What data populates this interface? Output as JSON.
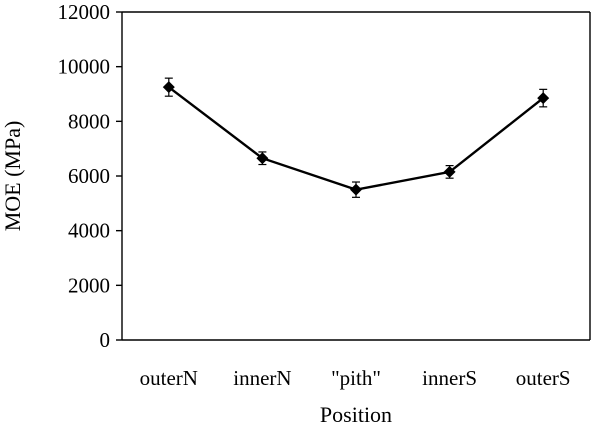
{
  "chart_data": {
    "type": "line",
    "title": "",
    "xlabel": "Position",
    "ylabel": "MOE (MPa)",
    "categories": [
      "outerN",
      "innerN",
      "\"pith\"",
      "innerS",
      "outerS"
    ],
    "series": [
      {
        "values": [
          9250,
          6650,
          5500,
          6150,
          8850
        ],
        "error": [
          330,
          230,
          280,
          230,
          320
        ],
        "marker": "diamond",
        "color": "#000000"
      }
    ],
    "ylim": [
      0,
      12000
    ],
    "yticks": [
      0,
      2000,
      4000,
      6000,
      8000,
      10000,
      12000
    ],
    "grid": false,
    "legend": "none"
  }
}
